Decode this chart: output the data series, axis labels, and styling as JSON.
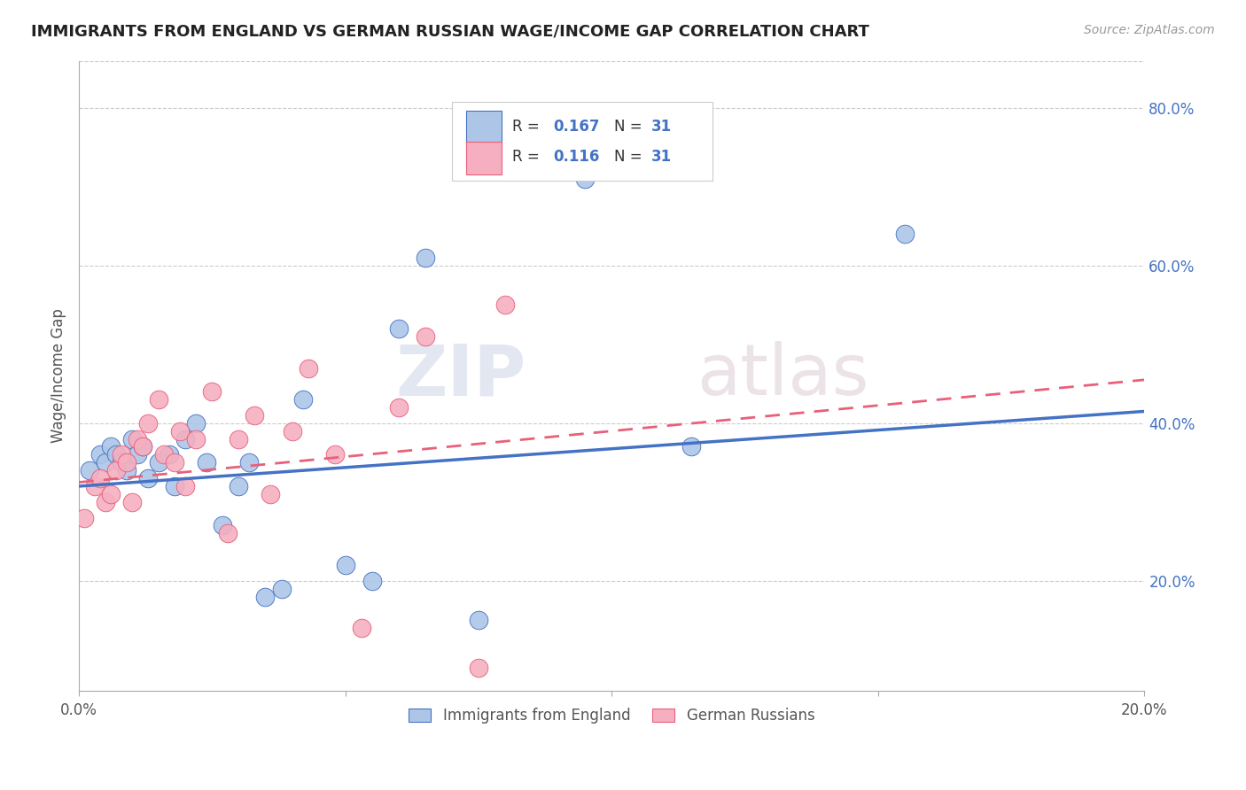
{
  "title": "IMMIGRANTS FROM ENGLAND VS GERMAN RUSSIAN WAGE/INCOME GAP CORRELATION CHART",
  "source": "Source: ZipAtlas.com",
  "ylabel": "Wage/Income Gap",
  "r_england": 0.167,
  "r_german": 0.116,
  "n_england": 31,
  "n_german": 31,
  "xlim": [
    0.0,
    0.2
  ],
  "ylim": [
    0.06,
    0.86
  ],
  "xticks": [
    0.0,
    0.05,
    0.1,
    0.15,
    0.2
  ],
  "xtick_labels": [
    "0.0%",
    "",
    "",
    "",
    "20.0%"
  ],
  "yticks_right": [
    0.2,
    0.4,
    0.6,
    0.8
  ],
  "color_england": "#adc6e8",
  "color_german": "#f5afc0",
  "line_england": "#4472c4",
  "line_german": "#e8607a",
  "watermark_zip": "ZIP",
  "watermark_atlas": "atlas",
  "england_x": [
    0.002,
    0.004,
    0.005,
    0.006,
    0.007,
    0.008,
    0.009,
    0.01,
    0.011,
    0.012,
    0.013,
    0.015,
    0.017,
    0.018,
    0.02,
    0.022,
    0.024,
    0.027,
    0.03,
    0.032,
    0.035,
    0.038,
    0.042,
    0.05,
    0.055,
    0.06,
    0.065,
    0.075,
    0.095,
    0.115,
    0.155
  ],
  "england_y": [
    0.34,
    0.36,
    0.35,
    0.37,
    0.36,
    0.35,
    0.34,
    0.38,
    0.36,
    0.37,
    0.33,
    0.35,
    0.36,
    0.32,
    0.38,
    0.4,
    0.35,
    0.27,
    0.32,
    0.35,
    0.18,
    0.19,
    0.43,
    0.22,
    0.2,
    0.52,
    0.61,
    0.15,
    0.71,
    0.37,
    0.64
  ],
  "german_x": [
    0.001,
    0.003,
    0.004,
    0.005,
    0.006,
    0.007,
    0.008,
    0.009,
    0.01,
    0.011,
    0.012,
    0.013,
    0.015,
    0.016,
    0.018,
    0.019,
    0.02,
    0.022,
    0.025,
    0.028,
    0.03,
    0.033,
    0.036,
    0.04,
    0.043,
    0.048,
    0.053,
    0.06,
    0.065,
    0.075,
    0.08
  ],
  "german_y": [
    0.28,
    0.32,
    0.33,
    0.3,
    0.31,
    0.34,
    0.36,
    0.35,
    0.3,
    0.38,
    0.37,
    0.4,
    0.43,
    0.36,
    0.35,
    0.39,
    0.32,
    0.38,
    0.44,
    0.26,
    0.38,
    0.41,
    0.31,
    0.39,
    0.47,
    0.36,
    0.14,
    0.42,
    0.51,
    0.09,
    0.55
  ],
  "trend_eng_x0": 0.0,
  "trend_eng_y0": 0.32,
  "trend_eng_x1": 0.2,
  "trend_eng_y1": 0.415,
  "trend_ger_x0": 0.0,
  "trend_ger_y0": 0.325,
  "trend_ger_x1": 0.2,
  "trend_ger_y1": 0.455
}
